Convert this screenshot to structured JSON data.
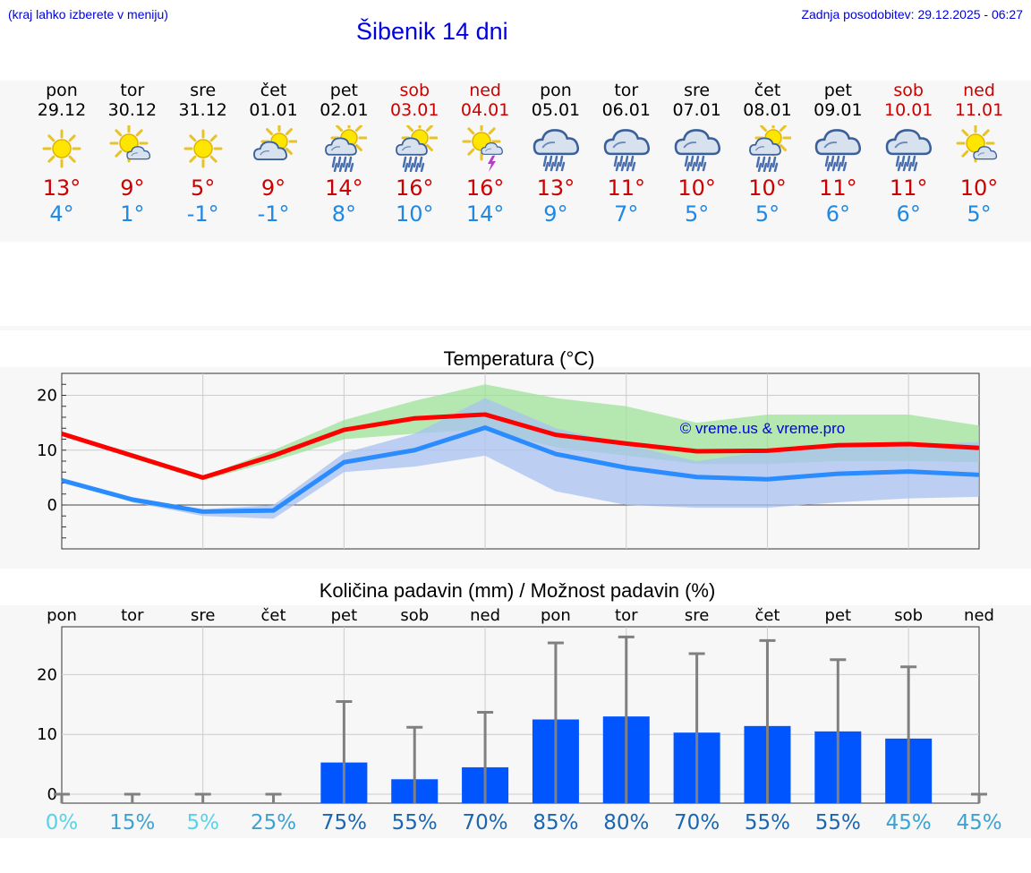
{
  "header": {
    "hint": "(kraj lahko izberete v meniju)",
    "title": "Šibenik 14 dni",
    "updated": "Zadnja posodobitev: 29.12.2025 - 06:27"
  },
  "days": [
    {
      "name": "pon",
      "date": "29.12",
      "icon": "sun-icon",
      "tmax": "13°",
      "tmin": "4°",
      "weekend": false
    },
    {
      "name": "tor",
      "date": "30.12",
      "icon": "sun-cloud-icon",
      "tmax": "9°",
      "tmin": "1°",
      "weekend": false
    },
    {
      "name": "sre",
      "date": "31.12",
      "icon": "sun-icon",
      "tmax": "5°",
      "tmin": "-1°",
      "weekend": false
    },
    {
      "name": "čet",
      "date": "01.01",
      "icon": "cloud-sun-icon",
      "tmax": "9°",
      "tmin": "-1°",
      "weekend": false
    },
    {
      "name": "pet",
      "date": "02.01",
      "icon": "sun-cloud-rain-icon",
      "tmax": "14°",
      "tmin": "8°",
      "weekend": false
    },
    {
      "name": "sob",
      "date": "03.01",
      "icon": "sun-cloud-rain-icon",
      "tmax": "16°",
      "tmin": "10°",
      "weekend": true
    },
    {
      "name": "ned",
      "date": "04.01",
      "icon": "sun-thunder-icon",
      "tmax": "16°",
      "tmin": "14°",
      "weekend": true
    },
    {
      "name": "pon",
      "date": "05.01",
      "icon": "cloud-rain-icon",
      "tmax": "13°",
      "tmin": "9°",
      "weekend": false
    },
    {
      "name": "tor",
      "date": "06.01",
      "icon": "cloud-rain-icon",
      "tmax": "11°",
      "tmin": "7°",
      "weekend": false
    },
    {
      "name": "sre",
      "date": "07.01",
      "icon": "cloud-rain-icon",
      "tmax": "10°",
      "tmin": "5°",
      "weekend": false
    },
    {
      "name": "čet",
      "date": "08.01",
      "icon": "sun-cloud-rain-icon",
      "tmax": "10°",
      "tmin": "5°",
      "weekend": false
    },
    {
      "name": "pet",
      "date": "09.01",
      "icon": "cloud-rain-icon",
      "tmax": "11°",
      "tmin": "6°",
      "weekend": false
    },
    {
      "name": "sob",
      "date": "10.01",
      "icon": "cloud-rain-icon",
      "tmax": "11°",
      "tmin": "6°",
      "weekend": true
    },
    {
      "name": "ned",
      "date": "11.01",
      "icon": "sun-cloud-icon",
      "tmax": "10°",
      "tmin": "5°",
      "weekend": true
    }
  ],
  "chart_data": [
    {
      "type": "line",
      "title": "Temperatura (°C)",
      "watermark": "© vreme.us & vreme.pro",
      "ylim": [
        -8,
        24
      ],
      "yticks": [
        0,
        10,
        20
      ],
      "grid": true,
      "series": [
        {
          "name": "max",
          "color": "#ff0000",
          "values": [
            13,
            9,
            5,
            9,
            13.7,
            15.8,
            16.5,
            12.8,
            11.2,
            9.8,
            9.9,
            10.9,
            11.1,
            10.4
          ]
        },
        {
          "name": "min",
          "color": "#2a8cff",
          "values": [
            4.5,
            1,
            -1.2,
            -1,
            7.8,
            10,
            14.1,
            9.3,
            6.8,
            5.1,
            4.7,
            5.7,
            6.1,
            5.5
          ]
        }
      ],
      "bands": [
        {
          "name": "max-range",
          "color": "#9fe29a",
          "lower": [
            13,
            8.5,
            4.5,
            8,
            12,
            13,
            13.8,
            10.5,
            9,
            7.5,
            7.5,
            8,
            8,
            7.8
          ],
          "upper": [
            13,
            9.5,
            5.2,
            10,
            15.5,
            19,
            22,
            19.5,
            18,
            15,
            16.5,
            16.5,
            16.5,
            14.5
          ]
        },
        {
          "name": "min-range",
          "color": "#a8c2f2",
          "lower": [
            4.5,
            0.5,
            -2,
            -2.5,
            6,
            7,
            9,
            2.5,
            0,
            -0.5,
            -0.5,
            0.5,
            1.2,
            1.5
          ],
          "upper": [
            4.5,
            1.2,
            -0.8,
            0,
            9.5,
            13,
            19.5,
            14,
            11,
            8,
            9.8,
            10.5,
            11,
            11.5
          ]
        }
      ]
    },
    {
      "type": "bar",
      "title": "Količina padavin (mm) / Možnost padavin (%)",
      "categories": [
        "pon",
        "tor",
        "sre",
        "čet",
        "pet",
        "sob",
        "ned",
        "pon",
        "tor",
        "sre",
        "čet",
        "pet",
        "sob",
        "ned"
      ],
      "values": [
        0,
        0,
        0,
        0,
        5.3,
        2.5,
        4.5,
        12.5,
        13,
        10.3,
        11.4,
        10.5,
        9.3,
        0
      ],
      "error_high": [
        0,
        0,
        0,
        0,
        15.5,
        11.2,
        13.7,
        25.3,
        26.3,
        23.5,
        25.7,
        22.5,
        21.3,
        0
      ],
      "probability": [
        "0%",
        "15%",
        "5%",
        "25%",
        "75%",
        "55%",
        "70%",
        "85%",
        "80%",
        "70%",
        "55%",
        "55%",
        "45%",
        "45%"
      ],
      "probability_colors": [
        "#55d4e8",
        "#3aa3d4",
        "#55d4e8",
        "#3aa3d4",
        "#1a66b0",
        "#1a66b0",
        "#1a66b0",
        "#1a66b0",
        "#1a66b0",
        "#1a66b0",
        "#1a66b0",
        "#1a66b0",
        "#3aa3d4",
        "#3aa3d4"
      ],
      "bar_color": "#0055ff",
      "ylim": [
        -1.5,
        28
      ],
      "yticks": [
        0,
        10,
        20
      ]
    }
  ]
}
